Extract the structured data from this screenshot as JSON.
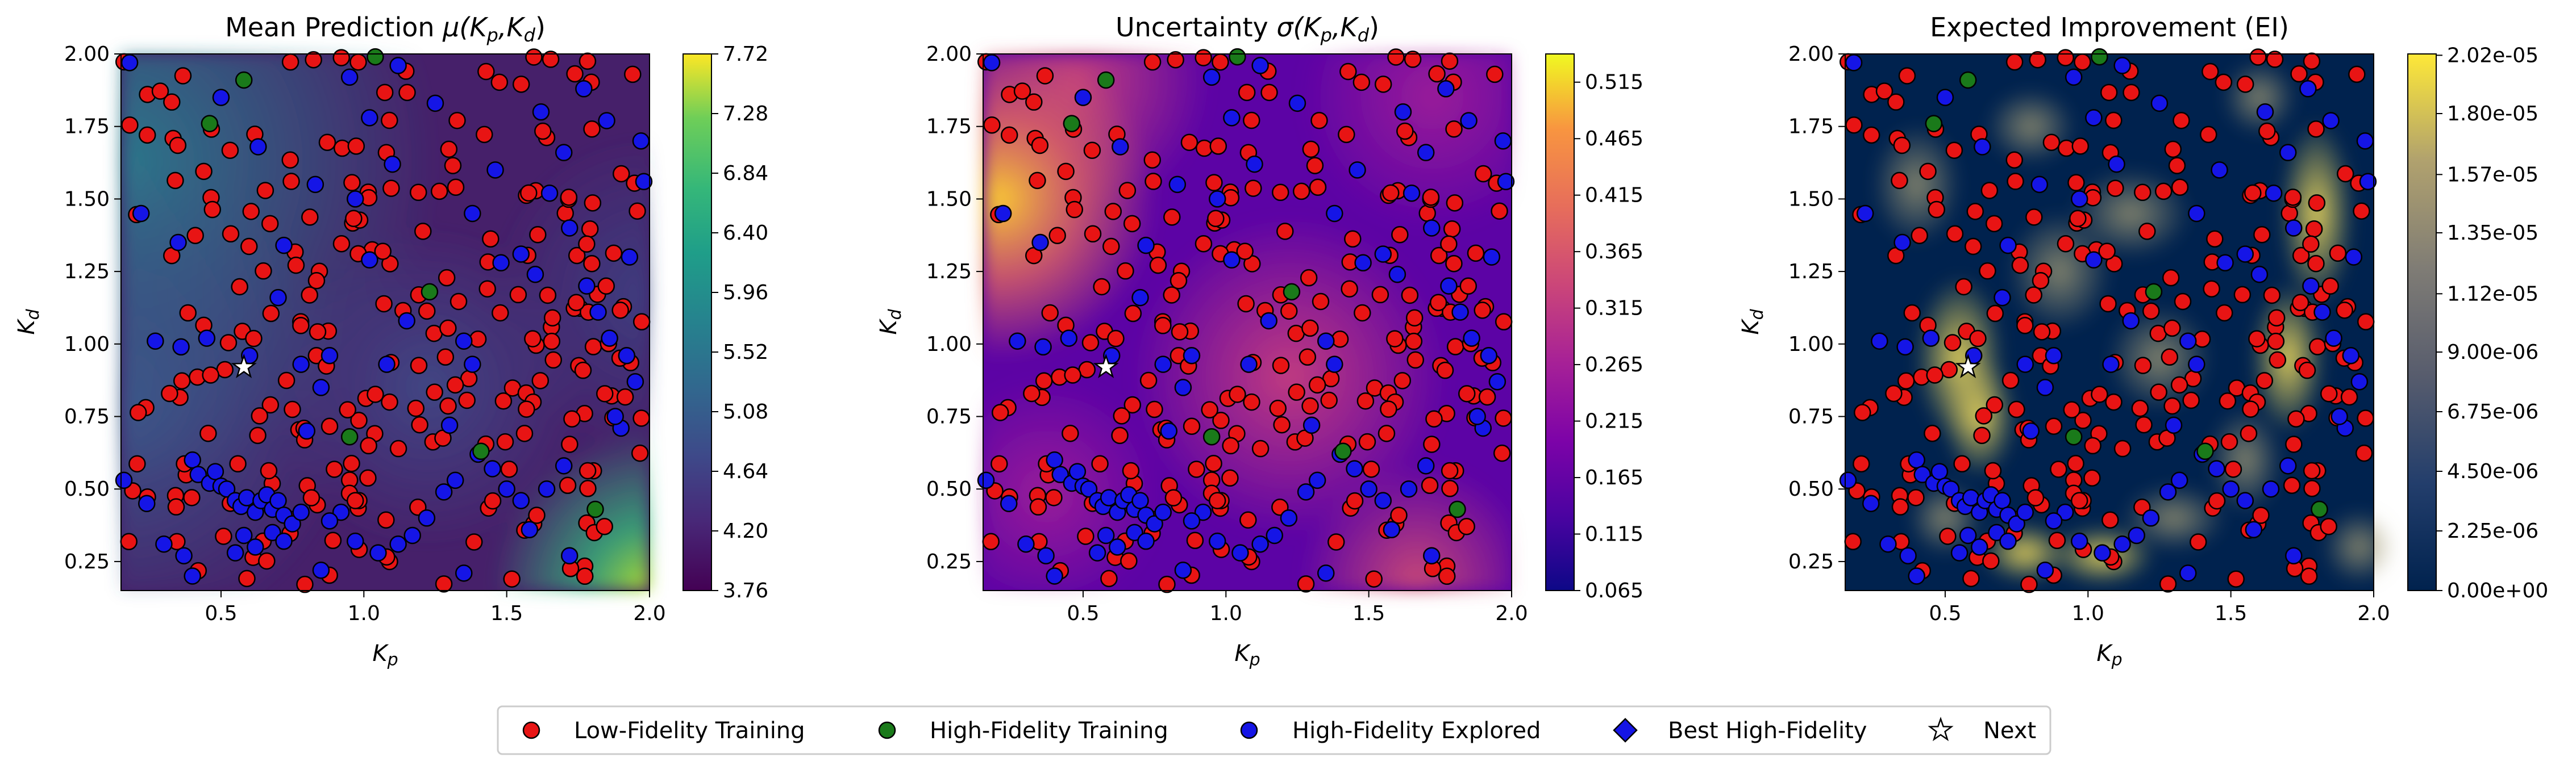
{
  "chart_data": [
    {
      "type": "heatmap",
      "title": "Mean Prediction μ(Kₚ,K_d)",
      "title_main": "Mean Prediction ",
      "title_func": "μ(K",
      "title_sub1": "p",
      "title_mid": ",K",
      "title_sub2": "d",
      "title_end": ")",
      "xlabel": "K",
      "xlabel_sub": "p",
      "ylabel": "K",
      "ylabel_sub": "d",
      "xlim": [
        0.15,
        2.0
      ],
      "ylim": [
        0.15,
        2.0
      ],
      "xticks": [
        "0.5",
        "1.0",
        "1.5",
        "2.0"
      ],
      "yticks": [
        "0.25",
        "0.50",
        "0.75",
        "1.00",
        "1.25",
        "1.50",
        "1.75",
        "2.00"
      ],
      "colormap": "viridis",
      "colorbar_range": [
        3.76,
        7.72
      ],
      "colorbar_ticks": [
        "3.76",
        "4.20",
        "4.64",
        "5.08",
        "5.52",
        "5.96",
        "6.40",
        "6.84",
        "7.28",
        "7.72"
      ]
    },
    {
      "type": "heatmap",
      "title": "Uncertainty σ(Kₚ,K_d)",
      "title_main": "Uncertainty ",
      "title_func": "σ(K",
      "title_sub1": "p",
      "title_mid": ",K",
      "title_sub2": "d",
      "title_end": ")",
      "xlabel": "K",
      "xlabel_sub": "p",
      "ylabel": "K",
      "ylabel_sub": "d",
      "xlim": [
        0.15,
        2.0
      ],
      "ylim": [
        0.15,
        2.0
      ],
      "xticks": [
        "0.5",
        "1.0",
        "1.5",
        "2.0"
      ],
      "yticks": [
        "0.25",
        "0.50",
        "0.75",
        "1.00",
        "1.25",
        "1.50",
        "1.75",
        "2.00"
      ],
      "colormap": "plasma",
      "colorbar_range": [
        0.065,
        0.54
      ],
      "colorbar_ticks": [
        "0.065",
        "0.115",
        "0.165",
        "0.215",
        "0.265",
        "0.315",
        "0.365",
        "0.415",
        "0.465",
        "0.515"
      ]
    },
    {
      "type": "heatmap",
      "title": "Expected Improvement (EI)",
      "title_main": "Expected Improvement (EI)",
      "title_func": "",
      "title_sub1": "",
      "title_mid": "",
      "title_sub2": "",
      "title_end": "",
      "xlabel": "K",
      "xlabel_sub": "p",
      "ylabel": "K",
      "ylabel_sub": "d",
      "xlim": [
        0.15,
        2.0
      ],
      "ylim": [
        0.15,
        2.0
      ],
      "xticks": [
        "0.5",
        "1.0",
        "1.5",
        "2.0"
      ],
      "yticks": [
        "0.25",
        "0.50",
        "0.75",
        "1.00",
        "1.25",
        "1.50",
        "1.75",
        "2.00"
      ],
      "colormap": "cividis",
      "colorbar_range": [
        0.0,
        2.025e-05
      ],
      "colorbar_ticks": [
        "0.00e+00",
        "2.25e-06",
        "4.50e-06",
        "6.75e-06",
        "9.00e-06",
        "1.12e-05",
        "1.35e-05",
        "1.57e-05",
        "1.80e-05",
        "2.02e-05"
      ]
    }
  ],
  "points": {
    "high_fidelity_training": [
      [
        0.58,
        1.91
      ],
      [
        0.95,
        0.68
      ],
      [
        1.41,
        0.63
      ],
      [
        1.81,
        0.43
      ],
      [
        1.04,
        1.99
      ],
      [
        1.23,
        1.18
      ],
      [
        0.46,
        1.76
      ]
    ],
    "high_fidelity_explored": [
      [
        0.22,
        1.45
      ],
      [
        0.27,
        1.01
      ],
      [
        0.36,
        0.99
      ],
      [
        0.4,
        0.6
      ],
      [
        0.42,
        0.55
      ],
      [
        0.46,
        0.52
      ],
      [
        0.48,
        0.56
      ],
      [
        0.5,
        0.51
      ],
      [
        0.52,
        0.5
      ],
      [
        0.55,
        0.46
      ],
      [
        0.57,
        0.44
      ],
      [
        0.59,
        0.47
      ],
      [
        0.62,
        0.42
      ],
      [
        0.64,
        0.46
      ],
      [
        0.66,
        0.48
      ],
      [
        0.68,
        0.43
      ],
      [
        0.7,
        0.46
      ],
      [
        0.72,
        0.41
      ],
      [
        0.75,
        0.38
      ],
      [
        0.78,
        0.42
      ],
      [
        0.55,
        0.28
      ],
      [
        0.58,
        0.34
      ],
      [
        0.62,
        0.3
      ],
      [
        0.68,
        0.35
      ],
      [
        0.72,
        0.32
      ],
      [
        0.6,
        0.96
      ],
      [
        0.78,
        0.93
      ],
      [
        0.88,
        0.96
      ],
      [
        0.85,
        0.85
      ],
      [
        0.83,
        1.55
      ],
      [
        0.97,
        1.5
      ],
      [
        1.02,
        1.78
      ],
      [
        0.95,
        1.92
      ],
      [
        1.12,
        1.96
      ],
      [
        1.15,
        1.08
      ],
      [
        1.35,
        1.01
      ],
      [
        1.38,
        0.93
      ],
      [
        1.48,
        1.28
      ],
      [
        1.55,
        1.31
      ],
      [
        1.6,
        1.24
      ],
      [
        1.65,
        1.52
      ],
      [
        1.72,
        1.4
      ],
      [
        1.78,
        1.2
      ],
      [
        1.82,
        1.11
      ],
      [
        1.86,
        1.02
      ],
      [
        1.92,
        0.96
      ],
      [
        1.95,
        0.87
      ],
      [
        1.98,
        1.56
      ],
      [
        1.97,
        1.7
      ],
      [
        1.62,
        1.8
      ],
      [
        1.7,
        1.66
      ],
      [
        1.9,
        0.71
      ],
      [
        1.88,
        0.75
      ],
      [
        1.7,
        0.58
      ],
      [
        1.64,
        0.5
      ],
      [
        1.55,
        0.46
      ],
      [
        1.5,
        0.5
      ],
      [
        1.45,
        0.57
      ],
      [
        1.4,
        0.62
      ],
      [
        1.32,
        0.53
      ],
      [
        1.28,
        0.49
      ],
      [
        1.22,
        0.4
      ],
      [
        1.17,
        0.34
      ],
      [
        1.12,
        0.31
      ],
      [
        1.05,
        0.28
      ],
      [
        0.97,
        0.32
      ],
      [
        0.92,
        0.42
      ],
      [
        0.88,
        0.39
      ],
      [
        0.35,
        1.35
      ],
      [
        0.18,
        1.97
      ],
      [
        0.16,
        0.53
      ],
      [
        0.24,
        0.45
      ],
      [
        0.3,
        0.31
      ],
      [
        0.37,
        0.27
      ],
      [
        1.1,
        1.62
      ],
      [
        0.63,
        1.68
      ],
      [
        1.46,
        1.6
      ],
      [
        0.72,
        1.34
      ],
      [
        1.25,
        1.83
      ],
      [
        1.77,
        1.88
      ],
      [
        1.85,
        1.77
      ],
      [
        0.45,
        1.02
      ],
      [
        1.08,
        0.93
      ],
      [
        1.3,
        0.72
      ],
      [
        0.8,
        0.7
      ],
      [
        1.58,
        0.36
      ],
      [
        1.72,
        0.27
      ],
      [
        1.02,
        1.29
      ],
      [
        0.7,
        1.16
      ],
      [
        0.5,
        1.85
      ],
      [
        1.38,
        1.45
      ],
      [
        1.93,
        1.3
      ],
      [
        1.35,
        0.21
      ],
      [
        0.85,
        0.22
      ],
      [
        0.4,
        0.2
      ]
    ],
    "low_fidelity_count": 260,
    "next": [
      0.58,
      0.92
    ],
    "best_high_fidelity": []
  },
  "legend": {
    "items": [
      {
        "label": "Low-Fidelity Training",
        "marker": "circle",
        "color": "#e81414"
      },
      {
        "label": "High-Fidelity Training",
        "marker": "circle",
        "color": "#1a7a1a"
      },
      {
        "label": "High-Fidelity Explored",
        "marker": "circle",
        "color": "#1515e6"
      },
      {
        "label": "Best High-Fidelity",
        "marker": "diamond",
        "color": "#1515e6"
      },
      {
        "label": "Next",
        "marker": "star",
        "color": "#ffffff"
      }
    ]
  }
}
